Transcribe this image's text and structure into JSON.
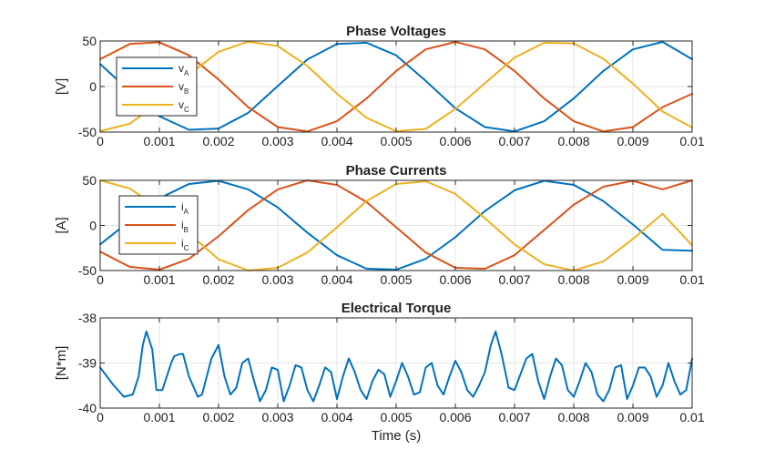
{
  "colors": {
    "blue": "#0072BD",
    "orange": "#D95319",
    "yellow": "#EDB120",
    "grid": "#e6e6e6",
    "axis": "#262626"
  },
  "chart_data": [
    {
      "type": "line",
      "title": "Phase Voltages",
      "ylabel": "[V]",
      "xlim": [
        0,
        0.01
      ],
      "ylim": [
        -50,
        50
      ],
      "xticks": [
        "0",
        "0.001",
        "0.002",
        "0.003",
        "0.004",
        "0.005",
        "0.006",
        "0.007",
        "0.008",
        "0.009",
        "0.01"
      ],
      "yticks": [
        "-50",
        "0",
        "50"
      ],
      "grid": true,
      "legend_position": "left-center",
      "series": [
        {
          "name": "v",
          "sub": "A",
          "color": "#0072BD",
          "x": [
            0,
            0.0005,
            0.001,
            0.0015,
            0.002,
            0.0025,
            0.003,
            0.0035,
            0.004,
            0.0045,
            0.005,
            0.0055,
            0.006,
            0.0065,
            0.007,
            0.0075,
            0.008,
            0.0085,
            0.009,
            0.0095,
            0.01
          ],
          "y": [
            24.6,
            -4.9,
            -32.6,
            -47.5,
            -46.1,
            -28.9,
            0.5,
            29.8,
            46.7,
            48.1,
            34.3,
            6.2,
            -23.9,
            -44.5,
            -49.3,
            -38.1,
            -13.1,
            17.1,
            40.8,
            49.0,
            30.0
          ]
        },
        {
          "name": "v",
          "sub": "B",
          "color": "#D95319",
          "x": [
            0,
            0.0005,
            0.001,
            0.0015,
            0.002,
            0.0025,
            0.003,
            0.0035,
            0.004,
            0.0045,
            0.005,
            0.0055,
            0.006,
            0.0065,
            0.007,
            0.0075,
            0.008,
            0.0085,
            0.009,
            0.0095,
            0.01
          ],
          "y": [
            30.0,
            46.7,
            48.6,
            34.3,
            7.7,
            -22.6,
            -44.5,
            -49.3,
            -38.1,
            -13.1,
            17.1,
            40.8,
            49.0,
            40.8,
            17.1,
            -13.1,
            -38.1,
            -49.3,
            -44.5,
            -22.6,
            -8.0
          ]
        },
        {
          "name": "v",
          "sub": "C",
          "color": "#EDB120",
          "x": [
            0,
            0.0005,
            0.001,
            0.0015,
            0.002,
            0.0025,
            0.003,
            0.0035,
            0.004,
            0.0045,
            0.005,
            0.0055,
            0.006,
            0.0065,
            0.007,
            0.0075,
            0.008,
            0.0085,
            0.009,
            0.0095,
            0.01
          ],
          "y": [
            -49.0,
            -40.8,
            -17.1,
            13.1,
            38.1,
            49.3,
            44.5,
            22.6,
            -7.9,
            -34.3,
            -49.0,
            -46.5,
            -24.6,
            3.6,
            31.7,
            48.1,
            47.4,
            30.5,
            3.2,
            -27.4,
            -45.0
          ]
        }
      ]
    },
    {
      "type": "line",
      "title": "Phase Currents",
      "ylabel": "[A]",
      "xlim": [
        0,
        0.01
      ],
      "ylim": [
        -50,
        50
      ],
      "xticks": [
        "0",
        "0.001",
        "0.002",
        "0.003",
        "0.004",
        "0.005",
        "0.006",
        "0.007",
        "0.008",
        "0.009",
        "0.01"
      ],
      "yticks": [
        "-50",
        "0",
        "50"
      ],
      "grid": true,
      "legend_position": "left-center",
      "series": [
        {
          "name": "i",
          "sub": "A",
          "color": "#0072BD",
          "x": [
            0,
            0.0005,
            0.001,
            0.0015,
            0.002,
            0.0025,
            0.003,
            0.0035,
            0.004,
            0.0045,
            0.005,
            0.0055,
            0.006,
            0.0065,
            0.007,
            0.0075,
            0.008,
            0.0085,
            0.009,
            0.0095,
            0.01
          ],
          "y": [
            -21.0,
            5.0,
            30.0,
            46.0,
            49.5,
            40.0,
            20.0,
            -8.0,
            -33.0,
            -48.0,
            -49.0,
            -37.0,
            -13.0,
            16.0,
            39.0,
            49.5,
            45.0,
            27.0,
            1.0,
            -27.0,
            -28.0
          ]
        },
        {
          "name": "i",
          "sub": "B",
          "color": "#D95319",
          "x": [
            0,
            0.0005,
            0.001,
            0.0015,
            0.002,
            0.0025,
            0.003,
            0.0035,
            0.004,
            0.0045,
            0.005,
            0.0055,
            0.006,
            0.0065,
            0.007,
            0.0075,
            0.008,
            0.0085,
            0.009,
            0.0095,
            0.01
          ],
          "y": [
            -29.0,
            -46.0,
            -49.0,
            -37.0,
            -12.0,
            17.0,
            40.0,
            50.0,
            45.0,
            26.0,
            -2.0,
            -30.0,
            -47.0,
            -48.0,
            -33.0,
            -5.0,
            23.0,
            43.0,
            49.5,
            40.0,
            50.0
          ]
        },
        {
          "name": "i",
          "sub": "C",
          "color": "#EDB120",
          "x": [
            0,
            0.0005,
            0.001,
            0.0015,
            0.002,
            0.0025,
            0.003,
            0.0035,
            0.004,
            0.0045,
            0.005,
            0.0055,
            0.006,
            0.0065,
            0.007,
            0.0075,
            0.008,
            0.0085,
            0.009,
            0.0095,
            0.01
          ],
          "y": [
            50.0,
            41.0,
            19.0,
            -9.0,
            -37.5,
            -50.0,
            -47.0,
            -30.0,
            -2.0,
            27.0,
            46.0,
            49.0,
            35.0,
            8.0,
            -21.0,
            -43.0,
            -50.0,
            -40.0,
            -15.0,
            13.0,
            -22.0
          ]
        }
      ]
    },
    {
      "type": "line",
      "title": "Electrical Torque",
      "ylabel": "[N*m]",
      "xlabel": "Time (s)",
      "xlim": [
        0,
        0.01
      ],
      "ylim": [
        -40,
        -38
      ],
      "xticks": [
        "0",
        "0.001",
        "0.002",
        "0.003",
        "0.004",
        "0.005",
        "0.006",
        "0.007",
        "0.008",
        "0.009",
        "0.01"
      ],
      "yticks": [
        "-40",
        "-39",
        "-38"
      ],
      "grid": true,
      "series": [
        {
          "name": "",
          "color": "#0072BD",
          "x": [
            0,
            0.0002,
            0.0004,
            0.00055,
            0.00065,
            0.00072,
            0.00078,
            0.00088,
            0.00095,
            0.00105,
            0.0012,
            0.00125,
            0.00135,
            0.0014,
            0.0015,
            0.00165,
            0.00172,
            0.0018,
            0.00188,
            0.002,
            0.0021,
            0.0022,
            0.0023,
            0.0024,
            0.0025,
            0.0026,
            0.0027,
            0.0028,
            0.0029,
            0.003,
            0.0031,
            0.0032,
            0.0033,
            0.0034,
            0.0035,
            0.0036,
            0.0037,
            0.0038,
            0.0039,
            0.004,
            0.0041,
            0.0042,
            0.0043,
            0.0044,
            0.0045,
            0.0046,
            0.0047,
            0.0048,
            0.0049,
            0.005,
            0.0051,
            0.0052,
            0.0053,
            0.0054,
            0.0055,
            0.0056,
            0.0057,
            0.0058,
            0.0059,
            0.006,
            0.0061,
            0.0062,
            0.0063,
            0.0064,
            0.0065,
            0.0066,
            0.00668,
            0.00678,
            0.0069,
            0.007,
            0.0071,
            0.0072,
            0.0073,
            0.0074,
            0.0075,
            0.0076,
            0.0077,
            0.0078,
            0.0079,
            0.008,
            0.0081,
            0.0082,
            0.0083,
            0.0084,
            0.0085,
            0.0086,
            0.0087,
            0.0088,
            0.0089,
            0.009,
            0.0091,
            0.0092,
            0.0093,
            0.0094,
            0.0095,
            0.0096,
            0.0097,
            0.0098,
            0.0099,
            0.01
          ],
          "y": [
            -39.1,
            -39.45,
            -39.75,
            -39.7,
            -39.3,
            -38.6,
            -38.3,
            -38.7,
            -39.6,
            -39.6,
            -39.0,
            -38.85,
            -38.8,
            -38.8,
            -39.3,
            -39.75,
            -39.7,
            -39.3,
            -38.9,
            -38.6,
            -39.3,
            -39.7,
            -39.55,
            -39.0,
            -38.9,
            -39.4,
            -39.85,
            -39.6,
            -39.1,
            -39.15,
            -39.85,
            -39.5,
            -39.05,
            -39.1,
            -39.6,
            -39.85,
            -39.5,
            -39.1,
            -39.2,
            -39.8,
            -39.3,
            -38.9,
            -39.2,
            -39.6,
            -39.8,
            -39.4,
            -39.15,
            -39.25,
            -39.75,
            -39.4,
            -39.0,
            -39.3,
            -39.7,
            -39.65,
            -39.1,
            -39.0,
            -39.5,
            -39.7,
            -39.3,
            -38.95,
            -39.2,
            -39.6,
            -39.75,
            -39.5,
            -39.2,
            -38.6,
            -38.3,
            -38.8,
            -39.55,
            -39.6,
            -39.25,
            -38.9,
            -38.8,
            -39.4,
            -39.8,
            -39.3,
            -38.9,
            -39.05,
            -39.6,
            -39.75,
            -39.4,
            -39.0,
            -39.2,
            -39.7,
            -39.85,
            -39.6,
            -39.1,
            -39.05,
            -39.8,
            -39.5,
            -39.1,
            -39.1,
            -39.3,
            -39.75,
            -39.5,
            -39.0,
            -39.4,
            -39.7,
            -39.6,
            -38.9
          ]
        }
      ]
    }
  ]
}
